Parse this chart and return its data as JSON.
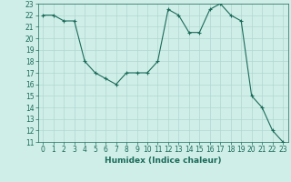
{
  "x": [
    0,
    1,
    2,
    3,
    4,
    5,
    6,
    7,
    8,
    9,
    10,
    11,
    12,
    13,
    14,
    15,
    16,
    17,
    18,
    19,
    20,
    21,
    22,
    23
  ],
  "y": [
    22,
    22,
    21.5,
    21.5,
    18,
    17,
    16.5,
    16,
    17,
    17,
    17,
    18,
    22.5,
    22,
    20.5,
    20.5,
    22.5,
    23,
    22,
    21.5,
    15,
    14,
    12,
    11
  ],
  "line_color": "#1a6b5a",
  "marker": "+",
  "marker_color": "#1a6b5a",
  "bg_color": "#d0eee8",
  "grid_color": "#b0d8d0",
  "xlabel": "Humidex (Indice chaleur)",
  "ylim": [
    11,
    23
  ],
  "xlim": [
    -0.5,
    23.5
  ],
  "yticks": [
    11,
    12,
    13,
    14,
    15,
    16,
    17,
    18,
    19,
    20,
    21,
    22,
    23
  ],
  "xticks": [
    0,
    1,
    2,
    3,
    4,
    5,
    6,
    7,
    8,
    9,
    10,
    11,
    12,
    13,
    14,
    15,
    16,
    17,
    18,
    19,
    20,
    21,
    22,
    23
  ],
  "tick_label_size": 5.5,
  "xlabel_size": 6.5,
  "label_color": "#1a6b5a"
}
